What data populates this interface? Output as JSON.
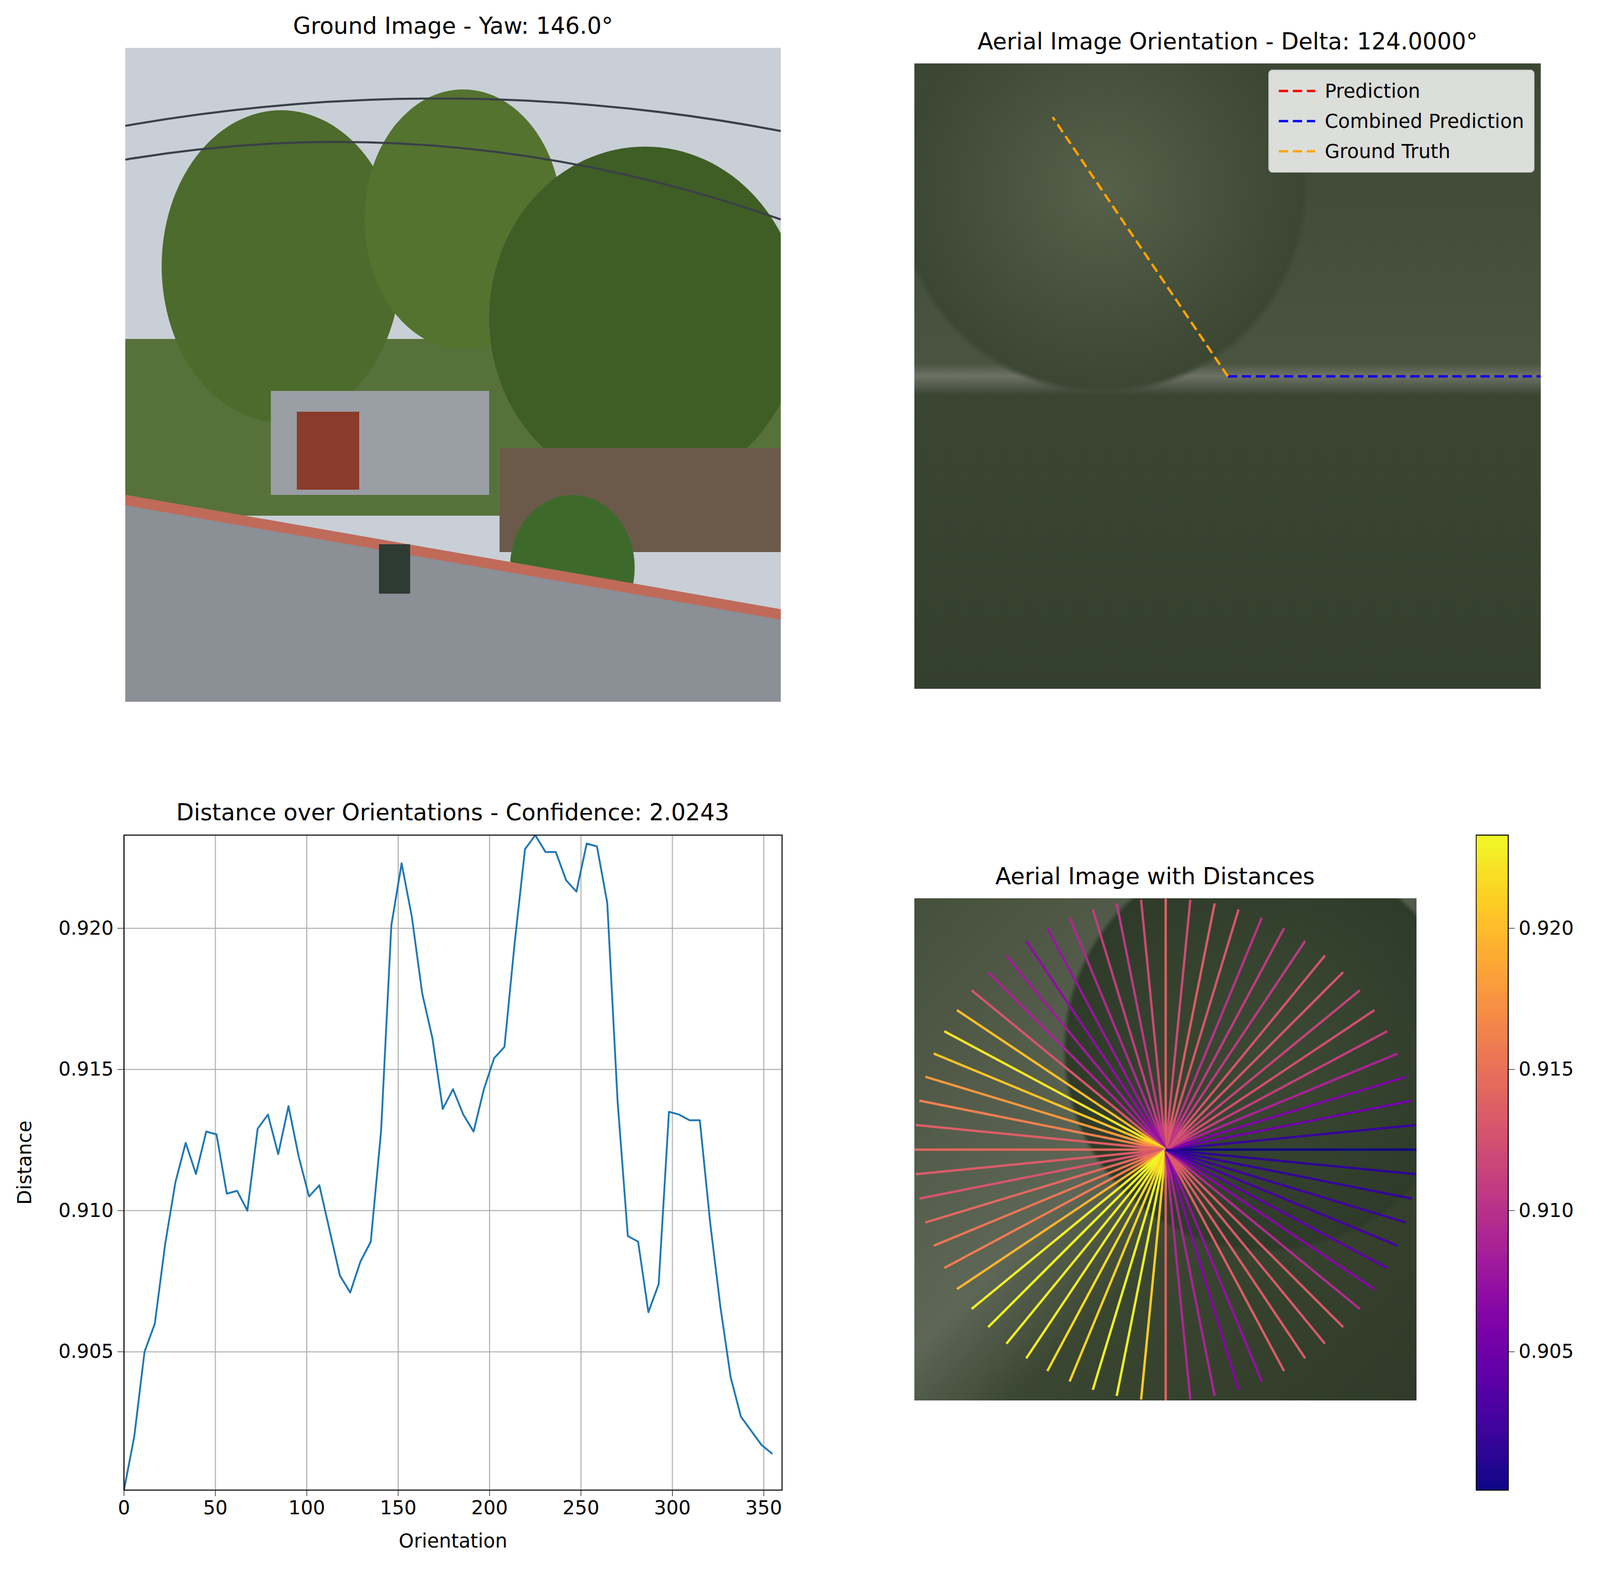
{
  "chart_data": [
    {
      "type": "image",
      "title": "Ground Image - Yaw: 146.0°"
    },
    {
      "type": "orientation",
      "title": "Aerial Image Orientation - Delta: 124.0000°",
      "legend": "upper right",
      "series": [
        {
          "name": "Prediction",
          "color": "red",
          "line_style": "dashed",
          "values": [
            0
          ]
        },
        {
          "name": "Combined Prediction",
          "color": "blue",
          "line_style": "dashed",
          "values": [
            0
          ]
        },
        {
          "name": "Ground Truth",
          "color": "orange",
          "line_style": "dashed",
          "values": [
            124
          ]
        }
      ]
    },
    {
      "type": "line",
      "title": "Distance over Orientations - Confidence: 2.0243",
      "xlabel": "Orientation",
      "ylabel": "Distance",
      "color": "#1f77b4",
      "x": [
        0,
        5.625,
        11.25,
        16.875,
        22.5,
        28.125,
        33.75,
        39.375,
        45,
        50.625,
        56.25,
        61.875,
        67.5,
        73.125,
        78.75,
        84.375,
        90,
        95.625,
        101.25,
        106.875,
        112.5,
        118.125,
        123.75,
        129.375,
        135,
        140.625,
        146.25,
        151.875,
        157.5,
        163.125,
        168.75,
        174.375,
        180,
        185.625,
        191.25,
        196.875,
        202.5,
        208.125,
        213.75,
        219.375,
        225,
        230.625,
        236.25,
        241.875,
        247.5,
        253.125,
        258.75,
        264.375,
        270,
        275.625,
        281.25,
        286.875,
        292.5,
        298.125,
        303.75,
        309.375,
        315,
        320.625,
        326.25,
        331.875,
        337.5,
        343.125,
        348.75,
        354.375
      ],
      "values": [
        0.9001,
        0.902,
        0.905,
        0.906,
        0.9088,
        0.911,
        0.9124,
        0.9113,
        0.9128,
        0.9127,
        0.9106,
        0.9107,
        0.91,
        0.9129,
        0.9134,
        0.912,
        0.9137,
        0.9119,
        0.9105,
        0.9109,
        0.9093,
        0.9077,
        0.9071,
        0.9082,
        0.9089,
        0.9128,
        0.9201,
        0.9223,
        0.9204,
        0.9177,
        0.9161,
        0.9136,
        0.9143,
        0.9134,
        0.9128,
        0.9143,
        0.9154,
        0.9158,
        0.9195,
        0.9228,
        0.9233,
        0.9227,
        0.9227,
        0.9217,
        0.9213,
        0.923,
        0.9229,
        0.9209,
        0.9139,
        0.9091,
        0.9089,
        0.9064,
        0.9074,
        0.9135,
        0.9134,
        0.9132,
        0.9132,
        0.9096,
        0.9066,
        0.9041,
        0.9027,
        0.9022,
        0.9017,
        0.9014
      ],
      "xlim": [
        0,
        360
      ],
      "ylim": [
        0.9001,
        0.9233
      ],
      "xticks": [
        0,
        50,
        100,
        150,
        200,
        250,
        300,
        350
      ],
      "yticks": [
        0.905,
        {
          "value": 0.91,
          "label": "0.910"
        },
        0.915,
        {
          "value": 0.92,
          "label": "0.920"
        }
      ],
      "grid": true
    },
    {
      "type": "fan",
      "title": "Aerial Image with Distances",
      "color": "plasma",
      "x": [
        0,
        5.625,
        11.25,
        16.875,
        22.5,
        28.125,
        33.75,
        39.375,
        45,
        50.625,
        56.25,
        61.875,
        67.5,
        73.125,
        78.75,
        84.375,
        90,
        95.625,
        101.25,
        106.875,
        112.5,
        118.125,
        123.75,
        129.375,
        135,
        140.625,
        146.25,
        151.875,
        157.5,
        163.125,
        168.75,
        174.375,
        180,
        185.625,
        191.25,
        196.875,
        202.5,
        208.125,
        213.75,
        219.375,
        225,
        230.625,
        236.25,
        241.875,
        247.5,
        253.125,
        258.75,
        264.375,
        270,
        275.625,
        281.25,
        286.875,
        292.5,
        298.125,
        303.75,
        309.375,
        315,
        320.625,
        326.25,
        331.875,
        337.5,
        343.125,
        348.75,
        354.375
      ],
      "values": [
        0.9001,
        0.902,
        0.905,
        0.906,
        0.9088,
        0.911,
        0.9124,
        0.9113,
        0.9128,
        0.9127,
        0.9106,
        0.9107,
        0.91,
        0.9129,
        0.9134,
        0.912,
        0.9137,
        0.9119,
        0.9105,
        0.9109,
        0.9093,
        0.9077,
        0.9071,
        0.9082,
        0.9089,
        0.9128,
        0.9201,
        0.9223,
        0.9204,
        0.9177,
        0.9161,
        0.9136,
        0.9143,
        0.9134,
        0.9128,
        0.9143,
        0.9154,
        0.9158,
        0.9195,
        0.9228,
        0.9233,
        0.9227,
        0.9227,
        0.9217,
        0.9213,
        0.923,
        0.9229,
        0.9209,
        0.9139,
        0.9091,
        0.9089,
        0.9064,
        0.9074,
        0.9135,
        0.9134,
        0.9132,
        0.9132,
        0.9096,
        0.9066,
        0.9041,
        0.9027,
        0.9022,
        0.9017,
        0.9014
      ],
      "color_range": [
        0.9001,
        0.9233
      ],
      "color_ticks": [
        0.905,
        {
          "value": 0.91,
          "label": "0.910"
        },
        0.915,
        {
          "value": 0.92,
          "label": "0.920"
        }
      ]
    }
  ]
}
